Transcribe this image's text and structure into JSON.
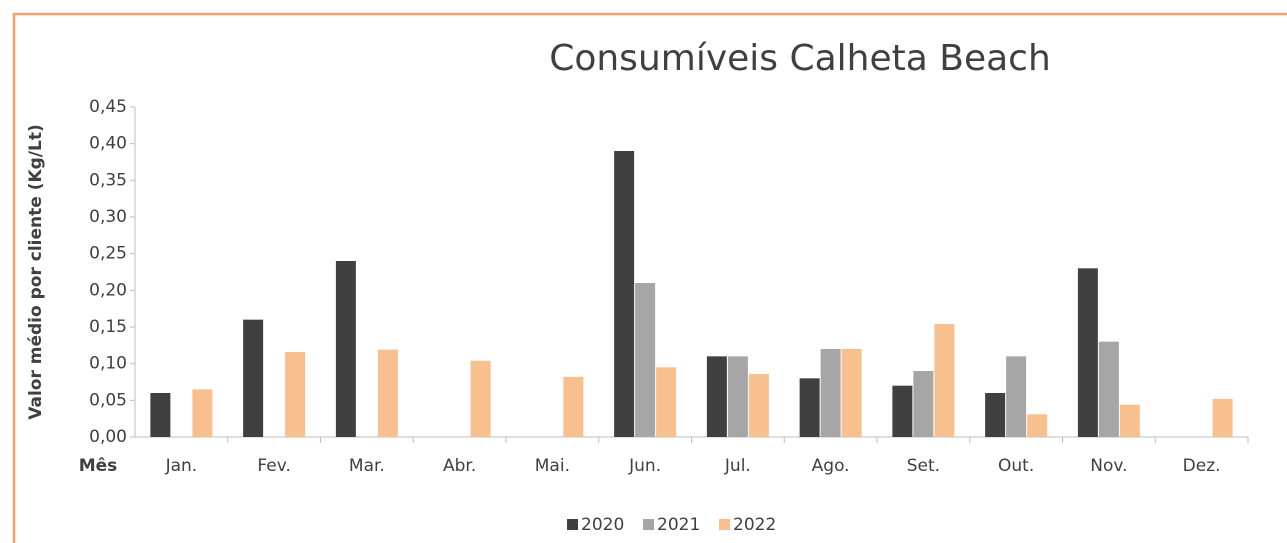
{
  "chart_data": {
    "type": "bar",
    "title": "Consumíveis Calheta Beach",
    "y_label": "Valor médio por cliente (Kg/Lt)",
    "x_label": "Mês",
    "categories": [
      "Jan.",
      "Fev.",
      "Mar.",
      "Abr.",
      "Mai.",
      "Jun.",
      "Jul.",
      "Ago.",
      "Set.",
      "Out.",
      "Nov.",
      "Dez."
    ],
    "series": [
      {
        "name": "2020",
        "color": "#404040",
        "values": [
          0.06,
          0.16,
          0.24,
          null,
          null,
          0.39,
          0.11,
          0.08,
          0.07,
          0.06,
          0.23,
          null
        ]
      },
      {
        "name": "2021",
        "color": "#a6a6a6",
        "values": [
          null,
          null,
          null,
          null,
          null,
          0.21,
          0.11,
          0.12,
          0.09,
          0.11,
          0.13,
          null
        ]
      },
      {
        "name": "2022",
        "color": "#f8c08f",
        "values": [
          0.065,
          0.116,
          0.119,
          0.104,
          0.082,
          0.095,
          0.086,
          0.12,
          0.154,
          0.031,
          0.044,
          0.052
        ]
      }
    ],
    "ylim": [
      0,
      0.45
    ],
    "yticks": [
      {
        "value": 0,
        "label": "0,00"
      },
      {
        "value": 0.05,
        "label": "0,05"
      },
      {
        "value": 0.1,
        "label": "0,10"
      },
      {
        "value": 0.15,
        "label": "0,15"
      },
      {
        "value": 0.2,
        "label": "0,20"
      },
      {
        "value": 0.25,
        "label": "0,25"
      },
      {
        "value": 0.3,
        "label": "0,30"
      },
      {
        "value": 0.35,
        "label": "0,35"
      },
      {
        "value": 0.4,
        "label": "0,40"
      },
      {
        "value": 0.45,
        "label": "0,45"
      }
    ],
    "legend": "bottom"
  }
}
